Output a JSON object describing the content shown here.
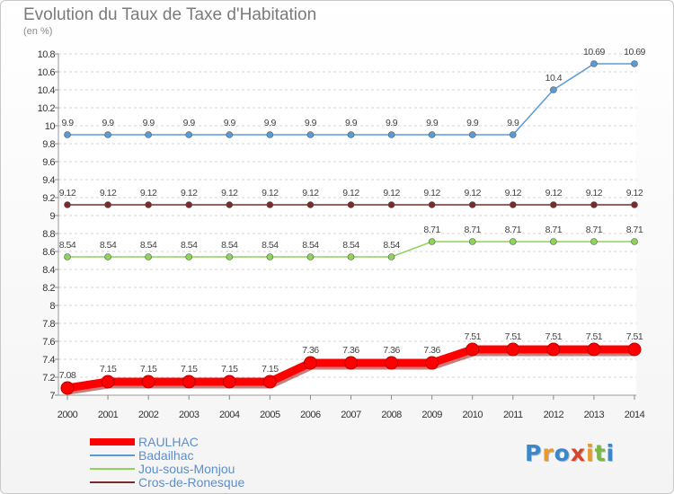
{
  "title": "Evolution du Taux de Taxe d'Habitation",
  "unit": "(en %)",
  "logo": {
    "text": "Proxiti",
    "letters": [
      "P",
      "r",
      "o",
      "x",
      "i",
      "t",
      "i"
    ],
    "colors": [
      "#3b87c9",
      "#e89a2c",
      "#3b87c9",
      "#d6452e",
      "#e89a2c",
      "#7ab648",
      "#3b87c9"
    ]
  },
  "chart_data": {
    "type": "line",
    "title": "Evolution du Taux de Taxe d'Habitation",
    "ylabel": "(en %)",
    "xlabel": "",
    "x": [
      "2000",
      "2001",
      "2002",
      "2003",
      "2004",
      "2005",
      "2006",
      "2007",
      "2008",
      "2009",
      "2010",
      "2011",
      "2012",
      "2013",
      "2014"
    ],
    "ylim": [
      7,
      10.8
    ],
    "yticks": [
      "7",
      "7.2",
      "7.4",
      "7.6",
      "7.8",
      "8",
      "8.2",
      "8.4",
      "8.6",
      "8.8",
      "9",
      "9.2",
      "9.4",
      "9.6",
      "9.8",
      "10",
      "10.2",
      "10.4",
      "10.6",
      "10.8"
    ],
    "grid": "horizontal-dashed",
    "legend_position": "bottom-left",
    "series": [
      {
        "name": "RAULHAC",
        "color": "#ff0000",
        "emphasis": true,
        "values": [
          7.08,
          7.15,
          7.15,
          7.15,
          7.15,
          7.15,
          7.36,
          7.36,
          7.36,
          7.36,
          7.51,
          7.51,
          7.51,
          7.51,
          7.51
        ],
        "labels": [
          "7.08",
          "7.15",
          "7.15",
          "7.15",
          "7.15",
          "7.15",
          "7.36",
          "7.36",
          "7.36",
          "7.36",
          "7.51",
          "7.51",
          "7.51",
          "7.51",
          "7.51"
        ]
      },
      {
        "name": "Badailhac",
        "color": "#5b9bd5",
        "emphasis": false,
        "values": [
          9.9,
          9.9,
          9.9,
          9.9,
          9.9,
          9.9,
          9.9,
          9.9,
          9.9,
          9.9,
          9.9,
          9.9,
          10.4,
          10.69,
          10.69
        ],
        "labels": [
          "9.9",
          "9.9",
          "9.9",
          "9.9",
          "9.9",
          "9.9",
          "9.9",
          "9.9",
          "9.9",
          "9.9",
          "9.9",
          "9.9",
          "10.4",
          "10.69",
          "10.69"
        ]
      },
      {
        "name": "Jou-sous-Monjou",
        "color": "#8ed35a",
        "emphasis": false,
        "values": [
          8.54,
          8.54,
          8.54,
          8.54,
          8.54,
          8.54,
          8.54,
          8.54,
          8.54,
          8.71,
          8.71,
          8.71,
          8.71,
          8.71,
          8.71
        ],
        "labels": [
          "8.54",
          "8.54",
          "8.54",
          "8.54",
          "8.54",
          "8.54",
          "8.54",
          "8.54",
          "8.54",
          "8.71",
          "8.71",
          "8.71",
          "8.71",
          "8.71",
          "8.71"
        ]
      },
      {
        "name": "Cros-de-Ronesque",
        "color": "#7a2a2a",
        "emphasis": false,
        "values": [
          9.12,
          9.12,
          9.12,
          9.12,
          9.12,
          9.12,
          9.12,
          9.12,
          9.12,
          9.12,
          9.12,
          9.12,
          9.12,
          9.12,
          9.12
        ],
        "labels": [
          "9.12",
          "9.12",
          "9.12",
          "9.12",
          "9.12",
          "9.12",
          "9.12",
          "9.12",
          "9.12",
          "9.12",
          "9.12",
          "9.12",
          "9.12",
          "9.12",
          "9.12"
        ]
      }
    ]
  }
}
